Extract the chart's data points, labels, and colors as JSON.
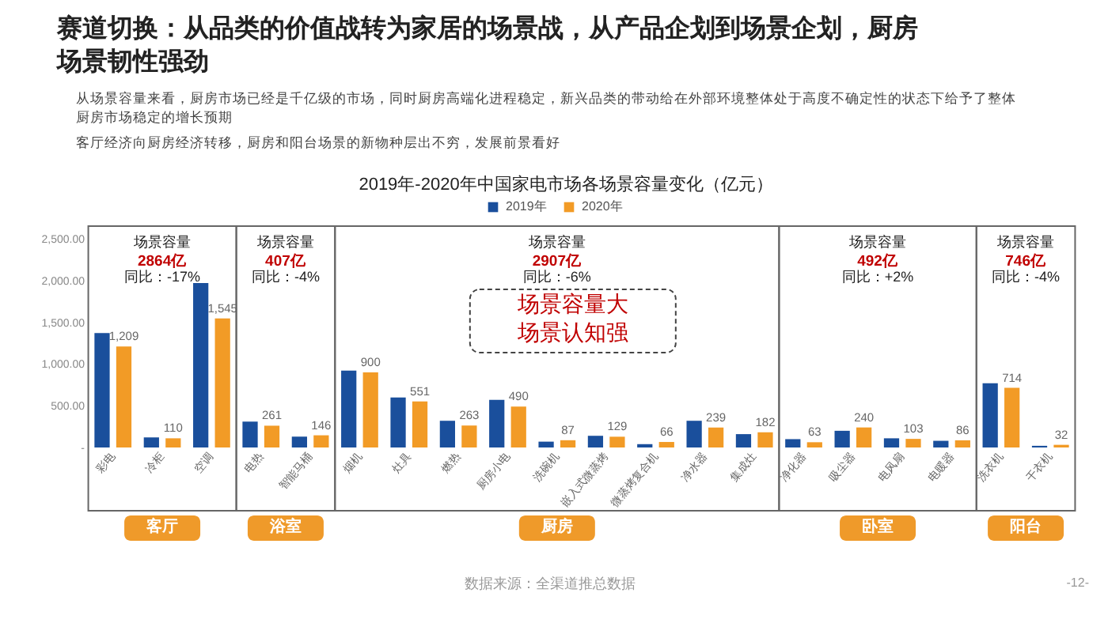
{
  "chart_data": {
    "type": "bar",
    "title": "赛道切换：从品类的价值战转为家居的场景战，从产品企划到场景企划，厨房场景韧性强劲",
    "subtitle": "2019年-2020年中国家电市场各场景容量变化（亿元）",
    "categories": [
      "彩电",
      "冷柜",
      "空调",
      "电热",
      "智能马桶",
      "烟机",
      "灶具",
      "燃热",
      "厨房小电",
      "洗碗机",
      "嵌入式微蒸烤",
      "微蒸烤复合机",
      "净水器",
      "集成灶",
      "净化器",
      "吸尘器",
      "电风扇",
      "电暖器",
      "洗衣机",
      "干衣机"
    ],
    "series": [
      {
        "name": "2019年",
        "color": "#1a4f9c",
        "values": [
          1370,
          120,
          1970,
          310,
          130,
          920,
          600,
          320,
          570,
          70,
          140,
          40,
          320,
          160,
          100,
          200,
          110,
          80,
          770,
          20
        ]
      },
      {
        "name": "2020年",
        "color": "#f29b26",
        "values": [
          1209,
          110,
          1545,
          261,
          146,
          900,
          551,
          263,
          490,
          87,
          129,
          66,
          239,
          182,
          63,
          240,
          103,
          86,
          714,
          32
        ],
        "value_labels": [
          "1,209",
          "110",
          "1,545",
          "261",
          "146",
          "900",
          "551",
          "263",
          "490",
          "87",
          "129",
          "66",
          "239",
          "182",
          "63",
          "240",
          "103",
          "86",
          "714",
          "32"
        ]
      }
    ],
    "ylim": [
      0,
      2500
    ],
    "yticks": [
      {
        "value": 0,
        "label": "-"
      },
      {
        "value": 500,
        "label": "500.00"
      },
      {
        "value": 1000,
        "label": "1,000.00"
      },
      {
        "value": 1500,
        "label": "1,500.00"
      },
      {
        "value": 2000,
        "label": "2,000.00"
      },
      {
        "value": 2500,
        "label": "2,500.00"
      }
    ],
    "grid": false,
    "legend": "top",
    "annotations": [
      "从场景容量来看，厨房市场已经是千亿级的市场，同时厨房高端化进程稳定，新兴品类的带动给在外部环境整体处于高度不确定性的状态下给予了整体厨房市场稳定的增长预期",
      "客厅经济向厨房经济转移，厨房和阳台场景的新物种层出不穷，发展前景看好",
      "场景容量",
      "2864亿",
      "同比：-17%",
      "场景容量",
      "407亿",
      "同比：-4%",
      "场景容量",
      "2907亿",
      "同比：-6%",
      "场景容量",
      "492亿",
      "同比：+2%",
      "场景容量",
      "746亿",
      "同比：-4%",
      "场景容量大场景认知强",
      "客厅",
      "浴室",
      "厨房",
      "卧室",
      "阳台",
      "数据来源：全渠道推总数据",
      "-12-"
    ]
  }
}
